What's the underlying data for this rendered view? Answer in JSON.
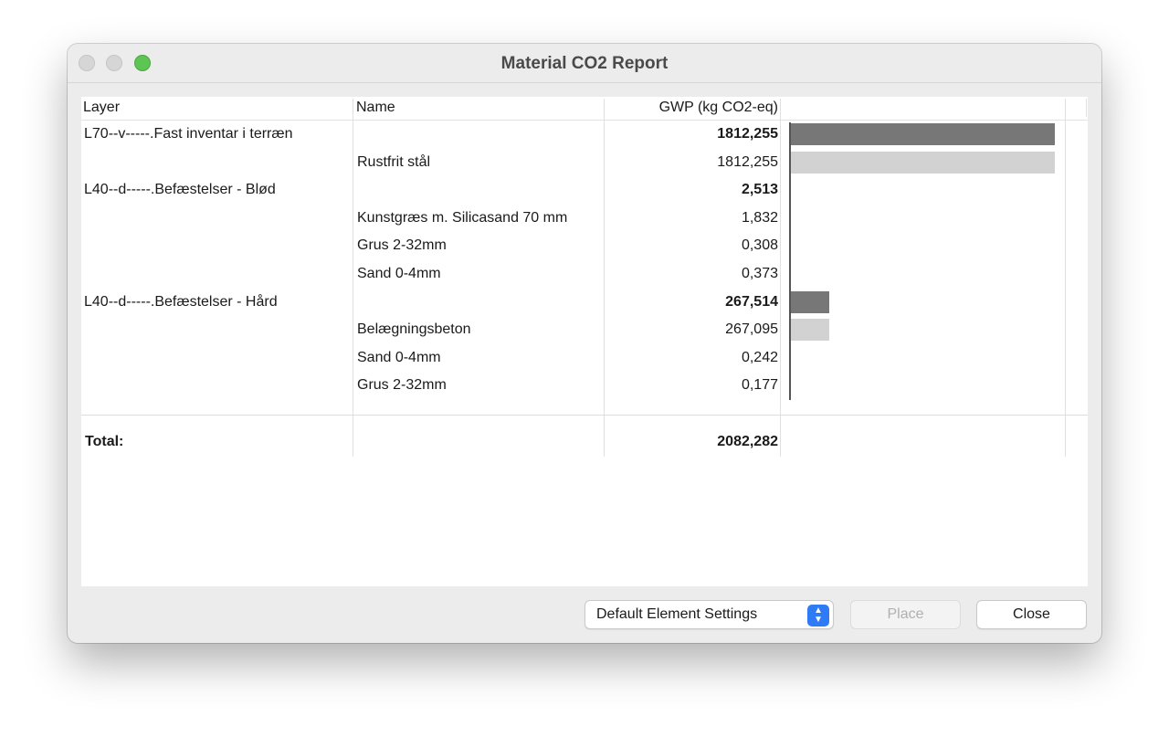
{
  "window": {
    "title": "Material CO2 Report"
  },
  "table": {
    "headers": {
      "layer": "Layer",
      "name": "Name",
      "gwp": "GWP (kg CO2-eq)"
    },
    "rows": [
      {
        "layer": "L70--v-----.Fast inventar i terræn",
        "name": "",
        "gwp": "1812,255",
        "bold": true
      },
      {
        "layer": "",
        "name": "Rustfrit stål",
        "gwp": "1812,255",
        "bold": false
      },
      {
        "layer": "L40--d-----.Befæstelser - Blød",
        "name": "",
        "gwp": "2,513",
        "bold": true
      },
      {
        "layer": "",
        "name": "Kunstgræs m. Silicasand 70 mm",
        "gwp": "1,832",
        "bold": false
      },
      {
        "layer": "",
        "name": "Grus 2-32mm",
        "gwp": "0,308",
        "bold": false
      },
      {
        "layer": "",
        "name": "Sand 0-4mm",
        "gwp": "0,373",
        "bold": false
      },
      {
        "layer": "L40--d-----.Befæstelser - Hård",
        "name": "",
        "gwp": "267,514",
        "bold": true
      },
      {
        "layer": "",
        "name": "Belægningsbeton",
        "gwp": "267,095",
        "bold": false
      },
      {
        "layer": "",
        "name": "Sand 0-4mm",
        "gwp": "0,242",
        "bold": false
      },
      {
        "layer": "",
        "name": "Grus 2-32mm",
        "gwp": "0,177",
        "bold": false
      }
    ],
    "total": {
      "label": "Total:",
      "value": "2082,282"
    },
    "bar_values": [
      1812.255,
      1812.255,
      2.513,
      1.832,
      0.308,
      0.373,
      267.514,
      267.095,
      0.242,
      0.177
    ],
    "bar_max": 1812.255,
    "colors": {
      "layer_bar": "#777777",
      "material_bar": "#d2d2d2"
    }
  },
  "footer": {
    "element_settings": "Default Element Settings",
    "place_label": "Place",
    "close_label": "Close"
  }
}
